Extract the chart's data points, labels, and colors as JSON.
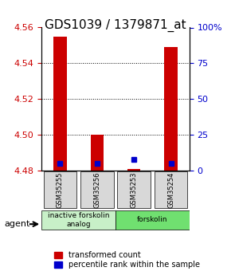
{
  "title": "GDS1039 / 1379871_at",
  "samples": [
    "GSM35255",
    "GSM35256",
    "GSM35253",
    "GSM35254"
  ],
  "red_values": [
    4.555,
    4.5,
    4.481,
    4.549
  ],
  "blue_values": [
    4.484,
    4.484,
    4.486,
    4.484
  ],
  "ylim_left": [
    4.48,
    4.56
  ],
  "ylim_right": [
    0,
    100
  ],
  "yticks_left": [
    4.48,
    4.5,
    4.52,
    4.54,
    4.56
  ],
  "yticks_right": [
    0,
    25,
    50,
    75,
    100
  ],
  "ytick_labels_right": [
    "0",
    "25",
    "50",
    "75",
    "100%"
  ],
  "grid_values": [
    4.5,
    4.52,
    4.54
  ],
  "groups": [
    {
      "label": "inactive forskolin\nanalog",
      "samples": [
        0,
        1
      ],
      "color": "#c8f0c8"
    },
    {
      "label": "forskolin",
      "samples": [
        2,
        3
      ],
      "color": "#70e070"
    }
  ],
  "agent_label": "agent",
  "legend_red": "transformed count",
  "legend_blue": "percentile rank within the sample",
  "bar_width": 0.35,
  "red_color": "#cc0000",
  "blue_color": "#0000cc",
  "left_tick_color": "#cc0000",
  "right_tick_color": "#0000cc",
  "title_fontsize": 11,
  "tick_fontsize": 8,
  "legend_fontsize": 7
}
